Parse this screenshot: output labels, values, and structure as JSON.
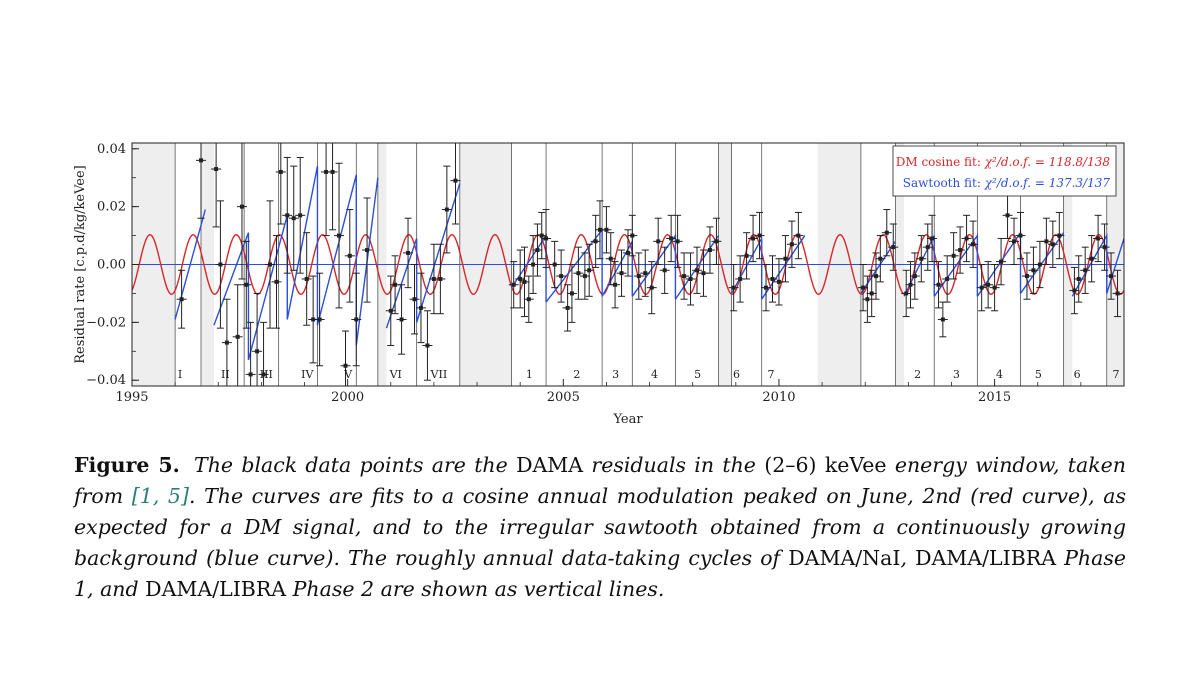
{
  "chart_data": {
    "type": "scatter",
    "xlabel": "Year",
    "ylabel": "Residual rate  [c.p.d/kg/keVee]",
    "xlim": [
      1995,
      2018
    ],
    "ylim": [
      -0.042,
      0.042
    ],
    "x_ticks": [
      1995,
      2000,
      2005,
      2010,
      2015
    ],
    "x_tick_labels": [
      "1995",
      "2000",
      "2005",
      "2010",
      "2015"
    ],
    "y_ticks": [
      -0.04,
      -0.02,
      0.0,
      0.02,
      0.04
    ],
    "y_tick_labels": [
      "−0.04",
      "−0.02",
      "0.00",
      "0.02",
      "0.04"
    ],
    "grid": false,
    "legend_position": "top-right",
    "legend": [
      {
        "label": "DM cosine fit:",
        "stat": "χ²/d.o.f. = 118.8/138",
        "color": "#d62728"
      },
      {
        "label": "Sawtooth fit:",
        "stat": "χ²/d.o.f. = 137.3/137",
        "color": "#2b4fd6"
      }
    ],
    "cycle_labels": [
      {
        "label": "I",
        "x": 1996.3
      },
      {
        "label": "II",
        "x": 1997.35
      },
      {
        "label": "III",
        "x": 1998.3
      },
      {
        "label": "IV",
        "x": 1999.25
      },
      {
        "label": "V",
        "x": 2000.2
      },
      {
        "label": "VI",
        "x": 2001.3
      },
      {
        "label": "VII",
        "x": 2002.3
      },
      {
        "label": "1",
        "x": 2004.4
      },
      {
        "label": "2",
        "x": 2005.5
      },
      {
        "label": "3",
        "x": 2006.4
      },
      {
        "label": "4",
        "x": 2007.3
      },
      {
        "label": "5",
        "x": 2008.3
      },
      {
        "label": "6",
        "x": 2009.2
      },
      {
        "label": "7",
        "x": 2010.0
      },
      {
        "label": "2",
        "x": 2013.4
      },
      {
        "label": "3",
        "x": 2014.3
      },
      {
        "label": "4",
        "x": 2015.3
      },
      {
        "label": "5",
        "x": 2016.2
      },
      {
        "label": "6",
        "x": 2017.1
      },
      {
        "label": "7",
        "x": 2018.0
      }
    ],
    "cycle_lines": [
      1996.0,
      1996.6,
      1997.6,
      1998.4,
      1999.3,
      2000.2,
      2000.7,
      2001.6,
      2002.6,
      2003.8,
      2004.6,
      2005.9,
      2006.6,
      2007.6,
      2008.6,
      2008.9,
      2009.6,
      2011.9,
      2012.7,
      2013.6,
      2014.6,
      2015.6,
      2016.6,
      2017.6
    ],
    "gray_bands": [
      [
        1995,
        1996.0
      ],
      [
        1996.6,
        1996.9
      ],
      [
        2000.7,
        2000.9
      ],
      [
        2002.6,
        2003.8
      ],
      [
        2008.6,
        2008.9
      ],
      [
        2010.9,
        2011.9
      ],
      [
        2012.7,
        2012.9
      ],
      [
        2016.6,
        2016.8
      ],
      [
        2017.6,
        2018.0
      ]
    ],
    "cosine_fit": {
      "amplitude": 0.0103,
      "period_years": 1.0,
      "phase_year_fraction": 0.417
    },
    "cosine_segments": [
      [
        1995.0,
        2018.0
      ]
    ],
    "sawtooth_segments": [
      {
        "x": [
          1996.0,
          1996.7
        ],
        "y": [
          -0.019,
          0.019
        ]
      },
      {
        "x": [
          1996.9,
          1997.7
        ],
        "y": [
          -0.021,
          0.011
        ]
      },
      {
        "x": [
          1997.7,
          1998.6
        ],
        "y": [
          -0.033,
          0.017
        ]
      },
      {
        "x": [
          1998.6,
          1999.3
        ],
        "y": [
          -0.019,
          0.034
        ]
      },
      {
        "x": [
          1999.3,
          2000.2
        ],
        "y": [
          -0.021,
          0.031
        ]
      },
      {
        "x": [
          2000.2,
          2000.7
        ],
        "y": [
          -0.028,
          0.03
        ]
      },
      {
        "x": [
          2000.9,
          2001.6
        ],
        "y": [
          -0.022,
          0.009
        ]
      },
      {
        "x": [
          2001.6,
          2002.6
        ],
        "y": [
          -0.02,
          0.028
        ]
      },
      {
        "x": [
          2003.8,
          2004.6
        ],
        "y": [
          -0.008,
          0.01
        ]
      },
      {
        "x": [
          2004.6,
          2005.9
        ],
        "y": [
          -0.013,
          0.012
        ]
      },
      {
        "x": [
          2005.9,
          2006.6
        ],
        "y": [
          -0.011,
          0.008
        ]
      },
      {
        "x": [
          2006.6,
          2007.6
        ],
        "y": [
          -0.011,
          0.01
        ]
      },
      {
        "x": [
          2007.6,
          2008.6
        ],
        "y": [
          -0.012,
          0.01
        ]
      },
      {
        "x": [
          2008.9,
          2009.6
        ],
        "y": [
          -0.01,
          0.009
        ]
      },
      {
        "x": [
          2009.6,
          2010.6
        ],
        "y": [
          -0.012,
          0.01
        ]
      },
      {
        "x": [
          2011.9,
          2012.7
        ],
        "y": [
          -0.01,
          0.008
        ]
      },
      {
        "x": [
          2012.9,
          2013.6
        ],
        "y": [
          -0.011,
          0.01
        ]
      },
      {
        "x": [
          2013.6,
          2014.6
        ],
        "y": [
          -0.011,
          0.01
        ]
      },
      {
        "x": [
          2014.6,
          2015.6
        ],
        "y": [
          -0.011,
          0.011
        ]
      },
      {
        "x": [
          2015.6,
          2016.6
        ],
        "y": [
          -0.01,
          0.011
        ]
      },
      {
        "x": [
          2016.8,
          2017.6
        ],
        "y": [
          -0.011,
          0.01
        ]
      },
      {
        "x": [
          2017.6,
          2018.0
        ],
        "y": [
          -0.01,
          0.009
        ]
      }
    ],
    "points": [
      {
        "x": 1996.15,
        "y": -0.012,
        "e": 0.01
      },
      {
        "x": 1996.6,
        "y": 0.036,
        "e": 0.02
      },
      {
        "x": 1996.95,
        "y": 0.033,
        "e": 0.02
      },
      {
        "x": 1997.05,
        "y": 0.0,
        "e": 0.022
      },
      {
        "x": 1997.2,
        "y": -0.027,
        "e": 0.015
      },
      {
        "x": 1997.45,
        "y": -0.025,
        "e": 0.018
      },
      {
        "x": 1997.55,
        "y": 0.02,
        "e": 0.025
      },
      {
        "x": 1997.65,
        "y": -0.007,
        "e": 0.015
      },
      {
        "x": 1997.75,
        "y": -0.038,
        "e": 0.018
      },
      {
        "x": 1997.9,
        "y": -0.03,
        "e": 0.02
      },
      {
        "x": 1998.05,
        "y": -0.038,
        "e": 0.018
      },
      {
        "x": 1998.2,
        "y": 0.0,
        "e": 0.022
      },
      {
        "x": 1998.35,
        "y": -0.006,
        "e": 0.016
      },
      {
        "x": 1998.45,
        "y": 0.032,
        "e": 0.018
      },
      {
        "x": 1998.6,
        "y": 0.017,
        "e": 0.02
      },
      {
        "x": 1998.75,
        "y": 0.016,
        "e": 0.018
      },
      {
        "x": 1998.9,
        "y": 0.017,
        "e": 0.02
      },
      {
        "x": 1999.05,
        "y": -0.005,
        "e": 0.016
      },
      {
        "x": 1999.2,
        "y": -0.019,
        "e": 0.015
      },
      {
        "x": 1999.35,
        "y": -0.019,
        "e": 0.016
      },
      {
        "x": 1999.5,
        "y": 0.032,
        "e": 0.022
      },
      {
        "x": 1999.65,
        "y": 0.032,
        "e": 0.02
      },
      {
        "x": 1999.8,
        "y": 0.01,
        "e": 0.025
      },
      {
        "x": 1999.95,
        "y": -0.035,
        "e": 0.012
      },
      {
        "x": 2000.05,
        "y": 0.003,
        "e": 0.016
      },
      {
        "x": 2000.2,
        "y": -0.019,
        "e": 0.016
      },
      {
        "x": 2000.45,
        "y": 0.005,
        "e": 0.018
      },
      {
        "x": 2001.0,
        "y": -0.016,
        "e": 0.012
      },
      {
        "x": 2001.1,
        "y": -0.007,
        "e": 0.01
      },
      {
        "x": 2001.25,
        "y": -0.019,
        "e": 0.012
      },
      {
        "x": 2001.4,
        "y": 0.004,
        "e": 0.012
      },
      {
        "x": 2001.55,
        "y": -0.012,
        "e": 0.012
      },
      {
        "x": 2001.7,
        "y": -0.015,
        "e": 0.012
      },
      {
        "x": 2001.85,
        "y": -0.028,
        "e": 0.012
      },
      {
        "x": 2002.0,
        "y": -0.005,
        "e": 0.012
      },
      {
        "x": 2002.15,
        "y": -0.005,
        "e": 0.012
      },
      {
        "x": 2002.3,
        "y": 0.019,
        "e": 0.015
      },
      {
        "x": 2002.5,
        "y": 0.029,
        "e": 0.015
      },
      {
        "x": 2003.85,
        "y": -0.007,
        "e": 0.008
      },
      {
        "x": 2004.0,
        "y": -0.005,
        "e": 0.01
      },
      {
        "x": 2004.1,
        "y": -0.006,
        "e": 0.012
      },
      {
        "x": 2004.2,
        "y": -0.012,
        "e": 0.008
      },
      {
        "x": 2004.3,
        "y": 0.0,
        "e": 0.01
      },
      {
        "x": 2004.4,
        "y": 0.005,
        "e": 0.009
      },
      {
        "x": 2004.5,
        "y": 0.01,
        "e": 0.008
      },
      {
        "x": 2004.6,
        "y": 0.009,
        "e": 0.01
      },
      {
        "x": 2004.8,
        "y": 0.0,
        "e": 0.008
      },
      {
        "x": 2004.95,
        "y": -0.004,
        "e": 0.009
      },
      {
        "x": 2005.1,
        "y": -0.015,
        "e": 0.008
      },
      {
        "x": 2005.2,
        "y": -0.01,
        "e": 0.01
      },
      {
        "x": 2005.35,
        "y": -0.003,
        "e": 0.009
      },
      {
        "x": 2005.5,
        "y": -0.004,
        "e": 0.008
      },
      {
        "x": 2005.6,
        "y": -0.002,
        "e": 0.009
      },
      {
        "x": 2005.75,
        "y": 0.008,
        "e": 0.009
      },
      {
        "x": 2005.85,
        "y": 0.012,
        "e": 0.01
      },
      {
        "x": 2006.0,
        "y": 0.012,
        "e": 0.008
      },
      {
        "x": 2006.1,
        "y": 0.002,
        "e": 0.009
      },
      {
        "x": 2006.2,
        "y": -0.007,
        "e": 0.008
      },
      {
        "x": 2006.35,
        "y": -0.003,
        "e": 0.008
      },
      {
        "x": 2006.5,
        "y": 0.004,
        "e": 0.008
      },
      {
        "x": 2006.6,
        "y": 0.01,
        "e": 0.007
      },
      {
        "x": 2006.75,
        "y": -0.004,
        "e": 0.008
      },
      {
        "x": 2006.9,
        "y": -0.003,
        "e": 0.008
      },
      {
        "x": 2007.05,
        "y": -0.008,
        "e": 0.009
      },
      {
        "x": 2007.2,
        "y": 0.008,
        "e": 0.008
      },
      {
        "x": 2007.35,
        "y": -0.002,
        "e": 0.008
      },
      {
        "x": 2007.5,
        "y": 0.009,
        "e": 0.008
      },
      {
        "x": 2007.65,
        "y": 0.008,
        "e": 0.009
      },
      {
        "x": 2007.8,
        "y": -0.004,
        "e": 0.008
      },
      {
        "x": 2007.95,
        "y": -0.005,
        "e": 0.009
      },
      {
        "x": 2008.1,
        "y": -0.002,
        "e": 0.008
      },
      {
        "x": 2008.25,
        "y": -0.003,
        "e": 0.008
      },
      {
        "x": 2008.4,
        "y": 0.005,
        "e": 0.008
      },
      {
        "x": 2008.55,
        "y": 0.008,
        "e": 0.008
      },
      {
        "x": 2008.95,
        "y": -0.008,
        "e": 0.008
      },
      {
        "x": 2009.1,
        "y": -0.005,
        "e": 0.008
      },
      {
        "x": 2009.25,
        "y": 0.003,
        "e": 0.008
      },
      {
        "x": 2009.4,
        "y": 0.009,
        "e": 0.008
      },
      {
        "x": 2009.55,
        "y": 0.01,
        "e": 0.008
      },
      {
        "x": 2009.7,
        "y": -0.008,
        "e": 0.008
      },
      {
        "x": 2009.85,
        "y": -0.005,
        "e": 0.008
      },
      {
        "x": 2010.0,
        "y": -0.006,
        "e": 0.008
      },
      {
        "x": 2010.15,
        "y": 0.002,
        "e": 0.008
      },
      {
        "x": 2010.3,
        "y": 0.007,
        "e": 0.008
      },
      {
        "x": 2010.45,
        "y": 0.01,
        "e": 0.008
      },
      {
        "x": 2011.95,
        "y": -0.008,
        "e": 0.008
      },
      {
        "x": 2012.05,
        "y": -0.012,
        "e": 0.008
      },
      {
        "x": 2012.15,
        "y": -0.01,
        "e": 0.008
      },
      {
        "x": 2012.25,
        "y": -0.004,
        "e": 0.008
      },
      {
        "x": 2012.35,
        "y": 0.002,
        "e": 0.008
      },
      {
        "x": 2012.5,
        "y": 0.011,
        "e": 0.008
      },
      {
        "x": 2012.65,
        "y": 0.006,
        "e": 0.008
      },
      {
        "x": 2012.95,
        "y": -0.01,
        "e": 0.008
      },
      {
        "x": 2013.05,
        "y": -0.007,
        "e": 0.008
      },
      {
        "x": 2013.15,
        "y": -0.004,
        "e": 0.008
      },
      {
        "x": 2013.3,
        "y": 0.002,
        "e": 0.008
      },
      {
        "x": 2013.45,
        "y": 0.006,
        "e": 0.008
      },
      {
        "x": 2013.55,
        "y": 0.009,
        "e": 0.008
      },
      {
        "x": 2013.7,
        "y": -0.007,
        "e": 0.008
      },
      {
        "x": 2013.8,
        "y": -0.019,
        "e": 0.006
      },
      {
        "x": 2013.9,
        "y": -0.005,
        "e": 0.008
      },
      {
        "x": 2014.05,
        "y": 0.003,
        "e": 0.008
      },
      {
        "x": 2014.2,
        "y": 0.005,
        "e": 0.008
      },
      {
        "x": 2014.35,
        "y": 0.009,
        "e": 0.008
      },
      {
        "x": 2014.5,
        "y": 0.007,
        "e": 0.008
      },
      {
        "x": 2014.7,
        "y": -0.008,
        "e": 0.008
      },
      {
        "x": 2014.85,
        "y": -0.007,
        "e": 0.008
      },
      {
        "x": 2015.0,
        "y": -0.008,
        "e": 0.008
      },
      {
        "x": 2015.15,
        "y": 0.001,
        "e": 0.008
      },
      {
        "x": 2015.3,
        "y": 0.017,
        "e": 0.008
      },
      {
        "x": 2015.45,
        "y": 0.008,
        "e": 0.008
      },
      {
        "x": 2015.6,
        "y": 0.01,
        "e": 0.008
      },
      {
        "x": 2015.75,
        "y": -0.004,
        "e": 0.008
      },
      {
        "x": 2015.9,
        "y": -0.002,
        "e": 0.008
      },
      {
        "x": 2016.05,
        "y": 0.0,
        "e": 0.008
      },
      {
        "x": 2016.2,
        "y": 0.008,
        "e": 0.008
      },
      {
        "x": 2016.35,
        "y": 0.007,
        "e": 0.008
      },
      {
        "x": 2016.5,
        "y": 0.01,
        "e": 0.008
      },
      {
        "x": 2016.85,
        "y": -0.009,
        "e": 0.008
      },
      {
        "x": 2016.95,
        "y": -0.005,
        "e": 0.008
      },
      {
        "x": 2017.1,
        "y": -0.002,
        "e": 0.008
      },
      {
        "x": 2017.25,
        "y": 0.002,
        "e": 0.008
      },
      {
        "x": 2017.4,
        "y": 0.009,
        "e": 0.008
      },
      {
        "x": 2017.55,
        "y": 0.006,
        "e": 0.008
      },
      {
        "x": 2017.7,
        "y": -0.004,
        "e": 0.008
      },
      {
        "x": 2017.85,
        "y": -0.01,
        "e": 0.008
      }
    ]
  },
  "caption": {
    "label": "Figure 5.",
    "p1": "The black data points are the ",
    "dama": "DAMA",
    "p2": " residuals in the ",
    "range": "(2–6) keVee",
    "p3": " energy window, taken from ",
    "ref_open": "[",
    "ref1": "1",
    "ref_sep": ", ",
    "ref2": "5",
    "ref_close": "]",
    "p4": ". The curves are fits to a cosine annual modulation peaked on June, 2nd (red curve), as expected for a DM signal, and to the irregular sawtooth obtained from a continuously growing background (blue curve). The roughly annual data-taking cycles of ",
    "nai": "DAMA/NaI",
    "comma1": ", ",
    "libra1": "DAMA/LIBRA",
    "phase1": " Phase 1",
    "and": ", and ",
    "libra2": "DAMA/LIBRA",
    "phase2": " Phase 2",
    "p5": " are shown as vertical lines."
  }
}
